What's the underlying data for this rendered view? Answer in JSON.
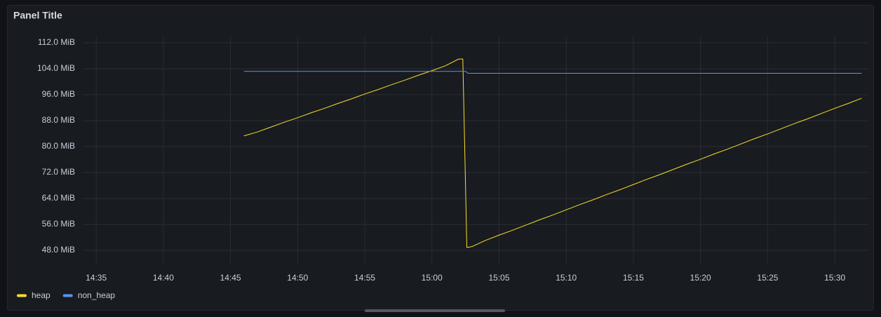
{
  "chart_data": {
    "type": "line",
    "title": "Panel Title",
    "xlim": [
      874,
      932.5
    ],
    "xticks": [
      {
        "value": 875,
        "label": "14:35"
      },
      {
        "value": 880,
        "label": "14:40"
      },
      {
        "value": 885,
        "label": "14:45"
      },
      {
        "value": 890,
        "label": "14:50"
      },
      {
        "value": 895,
        "label": "14:55"
      },
      {
        "value": 900,
        "label": "15:00"
      },
      {
        "value": 905,
        "label": "15:05"
      },
      {
        "value": 910,
        "label": "15:10"
      },
      {
        "value": 915,
        "label": "15:15"
      },
      {
        "value": 920,
        "label": "15:20"
      },
      {
        "value": 925,
        "label": "15:25"
      },
      {
        "value": 930,
        "label": "15:30"
      }
    ],
    "ylim": [
      44,
      114
    ],
    "yticks": [
      {
        "value": 48,
        "label": "48.0 MiB"
      },
      {
        "value": 56,
        "label": "56.0 MiB"
      },
      {
        "value": 64,
        "label": "64.0 MiB"
      },
      {
        "value": 72,
        "label": "72.0 MiB"
      },
      {
        "value": 80,
        "label": "80.0 MiB"
      },
      {
        "value": 88,
        "label": "88.0 MiB"
      },
      {
        "value": 96,
        "label": "96.0 MiB"
      },
      {
        "value": 104,
        "label": "104.0 MiB"
      },
      {
        "value": 112,
        "label": "112.0 MiB"
      }
    ],
    "grid": true,
    "legend": "bottom-left",
    "series": [
      {
        "name": "heap",
        "color": "#fade2a",
        "x": [
          886,
          887,
          888,
          889,
          890,
          891,
          892,
          893,
          894,
          895,
          896,
          897,
          898,
          899,
          900,
          901,
          902,
          902.3,
          902.6,
          903,
          904,
          905,
          906,
          907,
          908,
          909,
          910,
          911,
          912,
          913,
          914,
          915,
          916,
          917,
          918,
          919,
          920,
          921,
          922,
          923,
          924,
          925,
          926,
          927,
          928,
          929,
          930,
          931,
          932
        ],
        "values": [
          83.3,
          84.5,
          86,
          87.5,
          88.9,
          90.4,
          91.8,
          93.3,
          94.7,
          96.2,
          97.6,
          99.1,
          100.5,
          102,
          103.4,
          104.9,
          107,
          107,
          48.9,
          49.2,
          51.1,
          52.7,
          54.2,
          55.8,
          57.4,
          58.9,
          60.5,
          62.1,
          63.6,
          65.2,
          66.7,
          68.3,
          69.9,
          71.4,
          73,
          74.6,
          76.1,
          77.7,
          79.2,
          80.8,
          82.4,
          83.9,
          85.5,
          87.1,
          88.6,
          90.2,
          91.8,
          93.3,
          94.9
        ]
      },
      {
        "name": "non_heap",
        "color": "#5794f2",
        "x": [
          886,
          902.5,
          902.7,
          932
        ],
        "values": [
          103.2,
          103.2,
          102.6,
          102.6
        ]
      }
    ]
  }
}
